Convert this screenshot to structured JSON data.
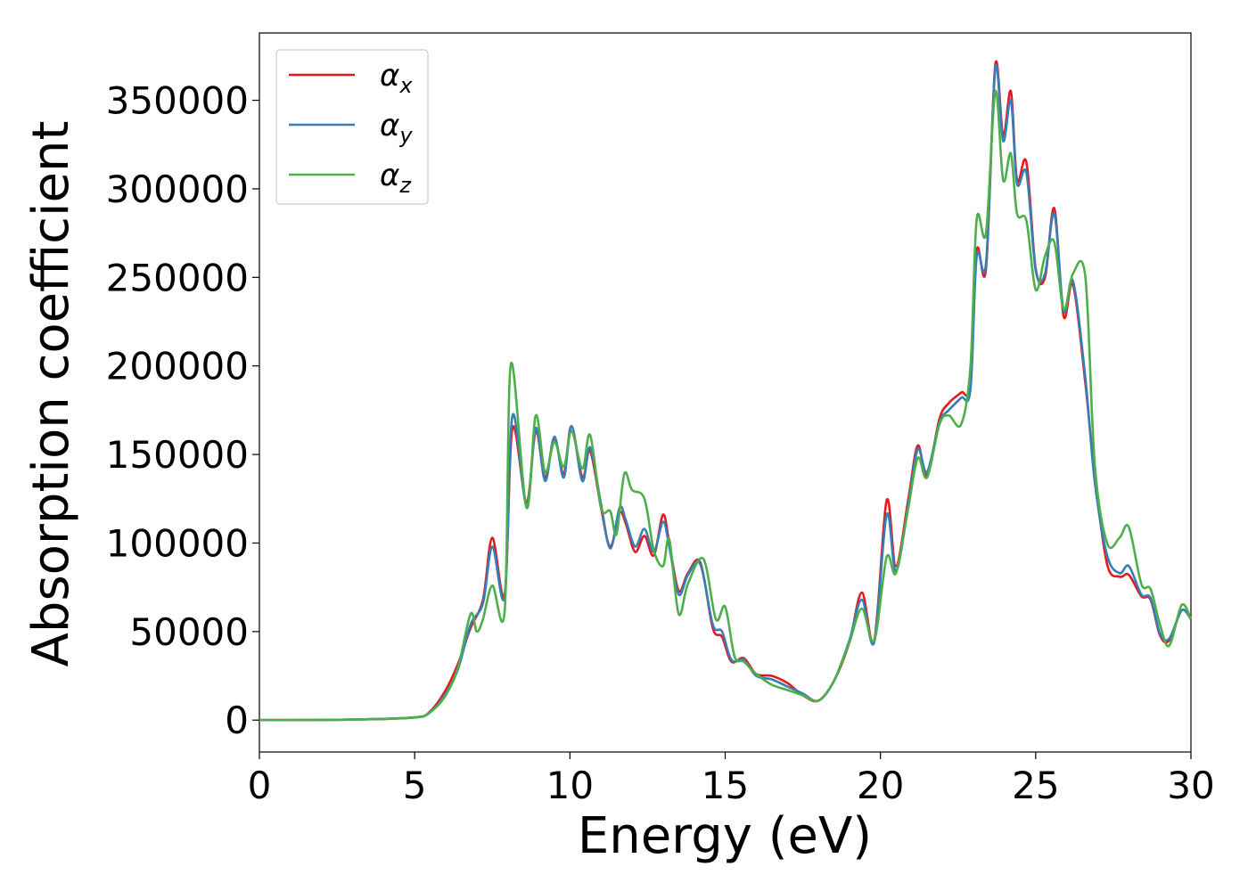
{
  "chart_data": {
    "type": "line",
    "xlabel": "Energy (eV)",
    "ylabel": "Absorption coefficient",
    "xlim": [
      0,
      30
    ],
    "ylim": [
      -18000,
      388000
    ],
    "xticks": [
      0,
      5,
      10,
      15,
      20,
      25,
      30
    ],
    "yticks": [
      0,
      50000,
      100000,
      150000,
      200000,
      250000,
      300000,
      350000
    ],
    "grid": false,
    "legend_position": "top-left",
    "series": [
      {
        "name": "αx",
        "sub": "x",
        "color": "#e41a1c",
        "x": [
          0,
          3,
          5,
          5.5,
          6.0,
          6.4,
          6.8,
          7.2,
          7.5,
          7.9,
          8.15,
          8.6,
          8.9,
          9.2,
          9.5,
          9.8,
          10.05,
          10.4,
          10.65,
          11.0,
          11.3,
          11.6,
          11.8,
          12.1,
          12.4,
          12.7,
          13.0,
          13.2,
          13.5,
          13.8,
          14.2,
          14.6,
          14.9,
          15.2,
          15.6,
          16.0,
          16.5,
          17.0,
          17.5,
          18.0,
          18.5,
          19.0,
          19.4,
          19.8,
          20.2,
          20.5,
          20.9,
          21.2,
          21.5,
          21.9,
          22.2,
          22.6,
          22.9,
          23.1,
          23.4,
          23.7,
          23.95,
          24.2,
          24.4,
          24.7,
          25.0,
          25.3,
          25.6,
          25.9,
          26.2,
          26.6,
          26.9,
          27.3,
          27.7,
          28.0,
          28.4,
          28.7,
          29.0,
          29.3,
          29.7,
          30.0
        ],
        "y": [
          0,
          300,
          1500,
          5000,
          17000,
          32000,
          52000,
          68000,
          103000,
          71000,
          165000,
          123000,
          163000,
          137000,
          159000,
          139000,
          166000,
          137000,
          152000,
          120000,
          98000,
          117000,
          111000,
          95000,
          104000,
          93000,
          116000,
          100000,
          73000,
          83000,
          89000,
          52000,
          47000,
          33000,
          35000,
          26000,
          25000,
          21000,
          14000,
          11000,
          22000,
          44000,
          72000,
          45000,
          124000,
          87000,
          125000,
          155000,
          138000,
          170000,
          179000,
          185000,
          190000,
          265000,
          255000,
          370000,
          330000,
          355000,
          305000,
          315000,
          255000,
          250000,
          289000,
          228000,
          246000,
          190000,
          138000,
          88000,
          81000,
          82000,
          70000,
          68000,
          48000,
          45000,
          62000,
          57000
        ]
      },
      {
        "name": "αy",
        "sub": "y",
        "color": "#377eb8",
        "x": [
          0,
          3,
          5,
          5.5,
          6.0,
          6.4,
          6.8,
          7.2,
          7.5,
          7.9,
          8.15,
          8.6,
          8.9,
          9.2,
          9.5,
          9.8,
          10.05,
          10.4,
          10.65,
          11.0,
          11.3,
          11.6,
          11.8,
          12.1,
          12.4,
          12.7,
          13.0,
          13.2,
          13.5,
          13.8,
          14.2,
          14.6,
          14.9,
          15.2,
          15.6,
          16.0,
          16.5,
          17.0,
          17.5,
          18.0,
          18.5,
          19.0,
          19.4,
          19.8,
          20.2,
          20.5,
          20.9,
          21.2,
          21.5,
          21.9,
          22.2,
          22.6,
          22.9,
          23.1,
          23.4,
          23.7,
          23.95,
          24.2,
          24.4,
          24.7,
          25.0,
          25.3,
          25.6,
          25.9,
          26.2,
          26.6,
          26.9,
          27.3,
          27.7,
          28.0,
          28.4,
          28.7,
          29.0,
          29.3,
          29.7,
          30.0
        ],
        "y": [
          0,
          300,
          1500,
          4500,
          15000,
          29000,
          54000,
          66000,
          98000,
          70000,
          172000,
          121000,
          165000,
          135000,
          160000,
          137000,
          166000,
          135000,
          154000,
          122000,
          97000,
          120000,
          113000,
          98000,
          108000,
          95000,
          112000,
          98000,
          71000,
          82000,
          88000,
          54000,
          50000,
          34000,
          34000,
          25000,
          23000,
          19000,
          15000,
          11000,
          22000,
          45000,
          68000,
          44000,
          116000,
          84000,
          122000,
          153000,
          140000,
          168000,
          175000,
          182000,
          187000,
          262000,
          258000,
          368000,
          327000,
          350000,
          303000,
          309000,
          254000,
          252000,
          286000,
          231000,
          248000,
          193000,
          135000,
          93000,
          83000,
          87000,
          71000,
          69000,
          49000,
          46000,
          62000,
          57000
        ]
      },
      {
        "name": "αz",
        "sub": "z",
        "color": "#4daf4a",
        "x": [
          0,
          3,
          5,
          5.5,
          6.0,
          6.4,
          6.8,
          7.0,
          7.2,
          7.5,
          7.9,
          8.1,
          8.6,
          8.9,
          9.2,
          9.5,
          9.8,
          10.05,
          10.4,
          10.65,
          11.0,
          11.3,
          11.5,
          11.75,
          12.0,
          12.4,
          12.7,
          13.0,
          13.2,
          13.5,
          13.8,
          14.3,
          14.7,
          15.0,
          15.3,
          15.6,
          16.0,
          16.5,
          17.0,
          17.5,
          18.0,
          18.5,
          19.0,
          19.4,
          19.8,
          20.2,
          20.5,
          20.9,
          21.2,
          21.5,
          21.9,
          22.2,
          22.6,
          22.9,
          23.1,
          23.4,
          23.7,
          23.95,
          24.2,
          24.4,
          24.7,
          25.0,
          25.3,
          25.6,
          25.9,
          26.2,
          26.6,
          26.9,
          27.3,
          27.7,
          28.0,
          28.4,
          28.7,
          29.0,
          29.3,
          29.7,
          30.0
        ],
        "y": [
          0,
          300,
          1500,
          4500,
          14000,
          30000,
          60000,
          50000,
          57000,
          76000,
          62000,
          201000,
          120000,
          172000,
          140000,
          157000,
          143000,
          163000,
          142000,
          161000,
          120000,
          118000,
          105000,
          139000,
          130000,
          125000,
          96000,
          87000,
          102000,
          60000,
          77000,
          91000,
          57000,
          64000,
          36000,
          33000,
          26000,
          20000,
          17000,
          14000,
          11000,
          22000,
          44000,
          63000,
          45000,
          92000,
          83000,
          120000,
          148000,
          137000,
          167000,
          172000,
          167000,
          200000,
          283000,
          275000,
          355000,
          305000,
          320000,
          286000,
          282000,
          243000,
          262000,
          270000,
          232000,
          252000,
          250000,
          145000,
          100000,
          103000,
          109000,
          77000,
          74000,
          54000,
          42000,
          65000,
          57000
        ]
      }
    ]
  }
}
